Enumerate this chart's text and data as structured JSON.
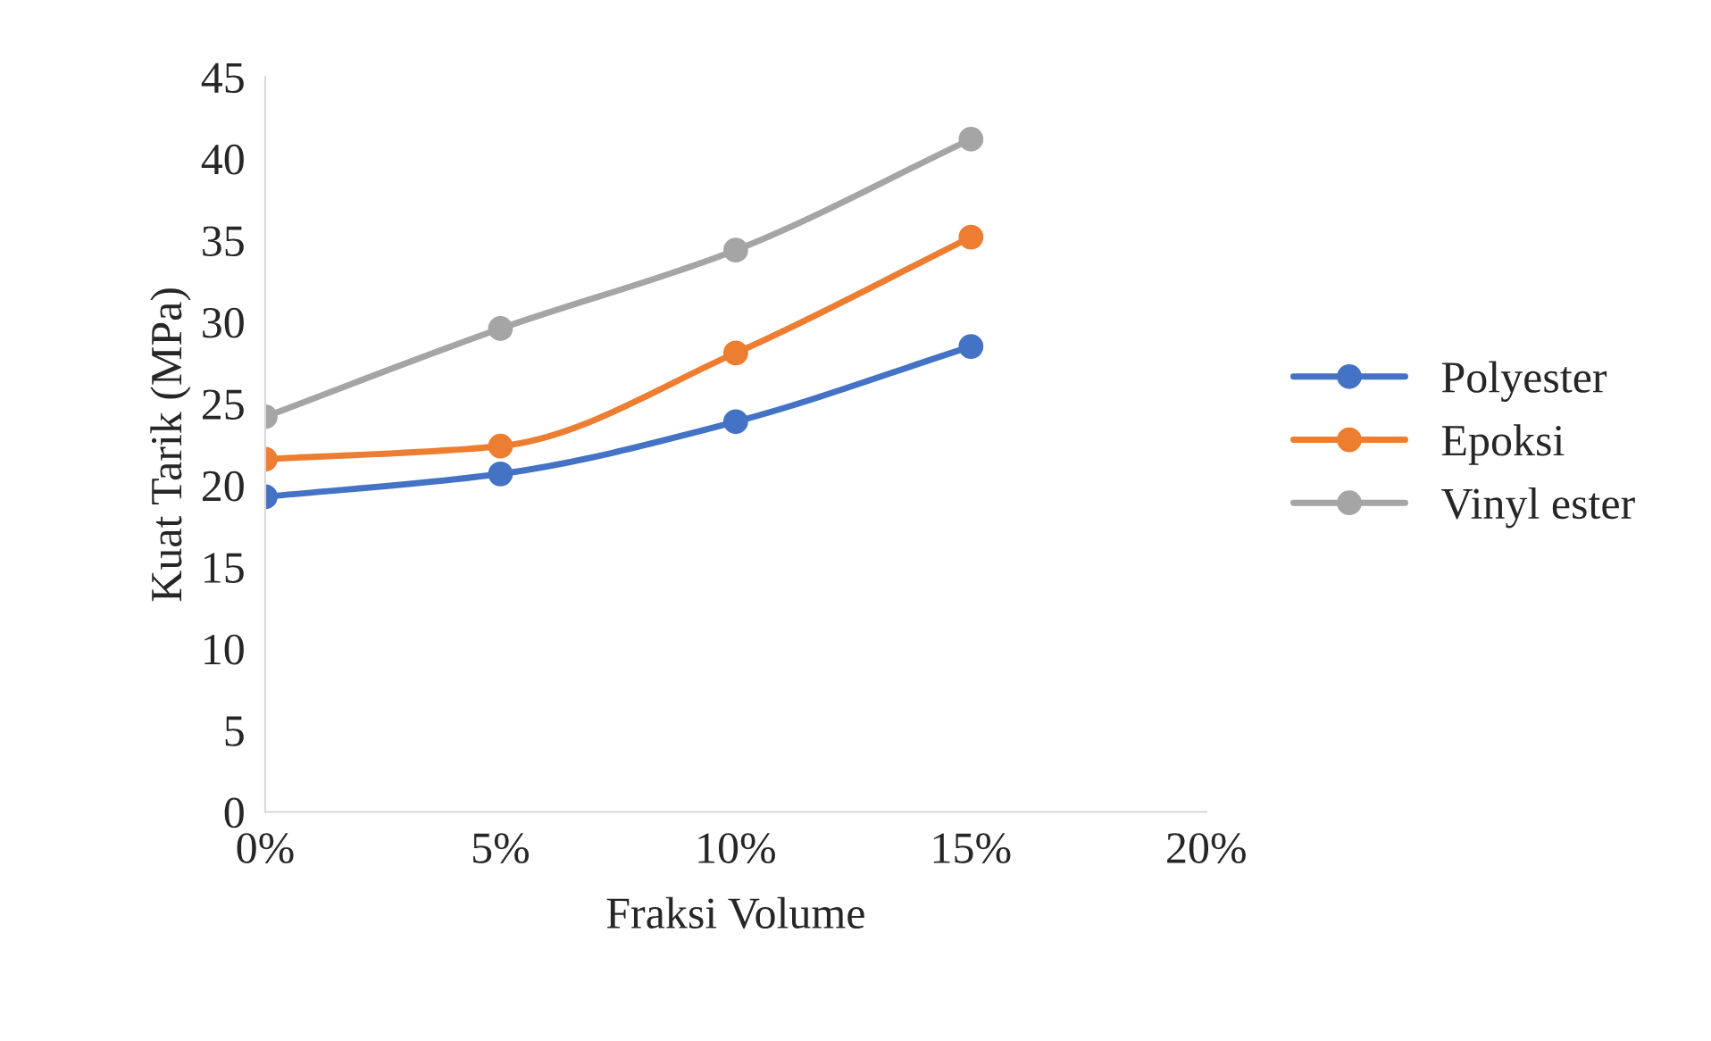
{
  "chart_data": {
    "type": "line",
    "xlabel": "Fraksi Volume",
    "ylabel": "Kuat Tarik (MPa)",
    "x": [
      0,
      5,
      10,
      15
    ],
    "series": [
      {
        "name": "Polyester",
        "color": "#4472c4",
        "values": [
          19.3,
          20.7,
          23.9,
          28.5
        ]
      },
      {
        "name": "Epoksi",
        "color": "#ed7d31",
        "values": [
          21.6,
          22.4,
          28.1,
          35.2
        ]
      },
      {
        "name": "Vinyl ester",
        "color": "#a5a5a5",
        "values": [
          24.2,
          29.6,
          34.4,
          41.2
        ]
      }
    ],
    "xlim": [
      0,
      20
    ],
    "xticks": [
      {
        "value": 0,
        "label": "0%"
      },
      {
        "value": 5,
        "label": "5%"
      },
      {
        "value": 10,
        "label": "10%"
      },
      {
        "value": 15,
        "label": "15%"
      },
      {
        "value": 20,
        "label": "20%"
      }
    ],
    "ylim": [
      0,
      45
    ],
    "yticks": [
      0,
      5,
      10,
      15,
      20,
      25,
      30,
      35,
      40,
      45
    ],
    "grid": false,
    "legend": "right",
    "marker": "circle",
    "line_style": "solid"
  }
}
